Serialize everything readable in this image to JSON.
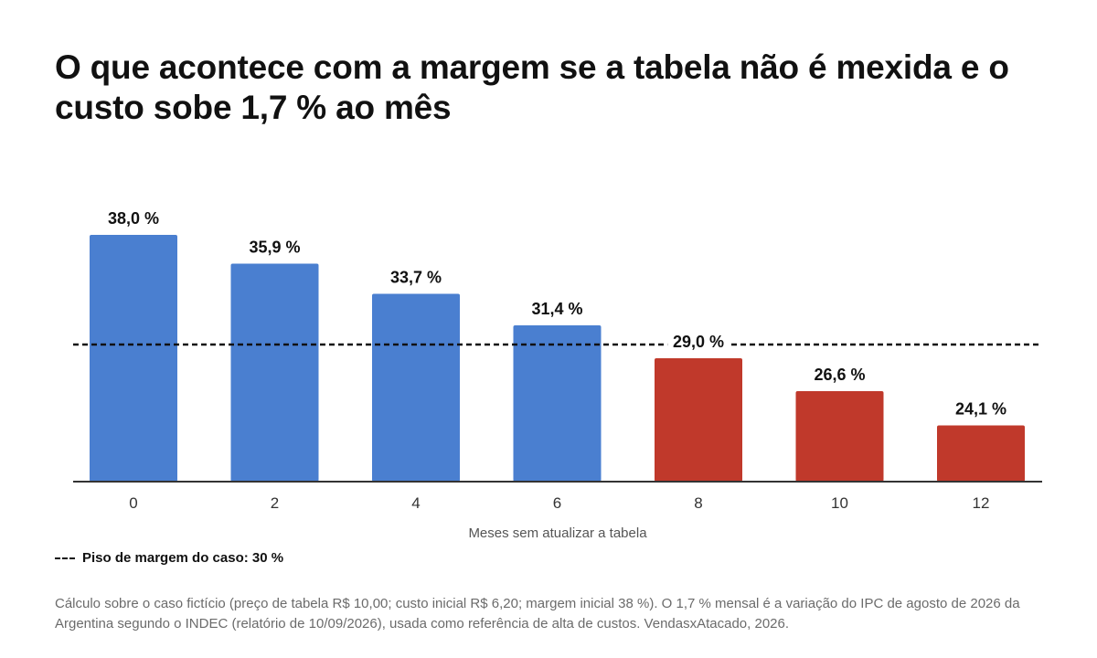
{
  "title": "O que acontece com a margem se a tabela não é mexida e o custo sobe 1,7 % ao mês",
  "legend": {
    "floor_label": "Piso de margem do caso: 30 %"
  },
  "footnote": "Cálculo sobre o caso fictício (preço de tabela R$ 10,00; custo inicial R$ 6,20; margem inicial 38 %). O 1,7 % mensal é a variação do IPC de agosto de 2026 da Argentina segundo o INDEC (relatório de 10/09/2026), usada como referência de alta de custos. VendasxAtacado, 2026.",
  "colors": {
    "above_floor": "#4a7fd0",
    "below_floor": "#c0392b",
    "reference_line": "#111111",
    "axis_line": "#333333",
    "axis_text": "#333333"
  },
  "chart_data": {
    "type": "bar",
    "categories": [
      "0",
      "2",
      "4",
      "6",
      "8",
      "10",
      "12"
    ],
    "values": [
      38.0,
      35.9,
      33.7,
      31.4,
      29.0,
      26.6,
      24.1
    ],
    "data_labels": [
      "38,0 %",
      "35,9 %",
      "33,7 %",
      "31,4 %",
      "29,0 %",
      "26,6 %",
      "24,1 %"
    ],
    "xlabel": "Meses sem atualizar a tabela",
    "ylabel": "",
    "ylim": [
      20,
      38
    ],
    "reference_line": {
      "value": 30,
      "style": "dashed"
    },
    "grid": false,
    "legend_position": "bottom-left"
  }
}
